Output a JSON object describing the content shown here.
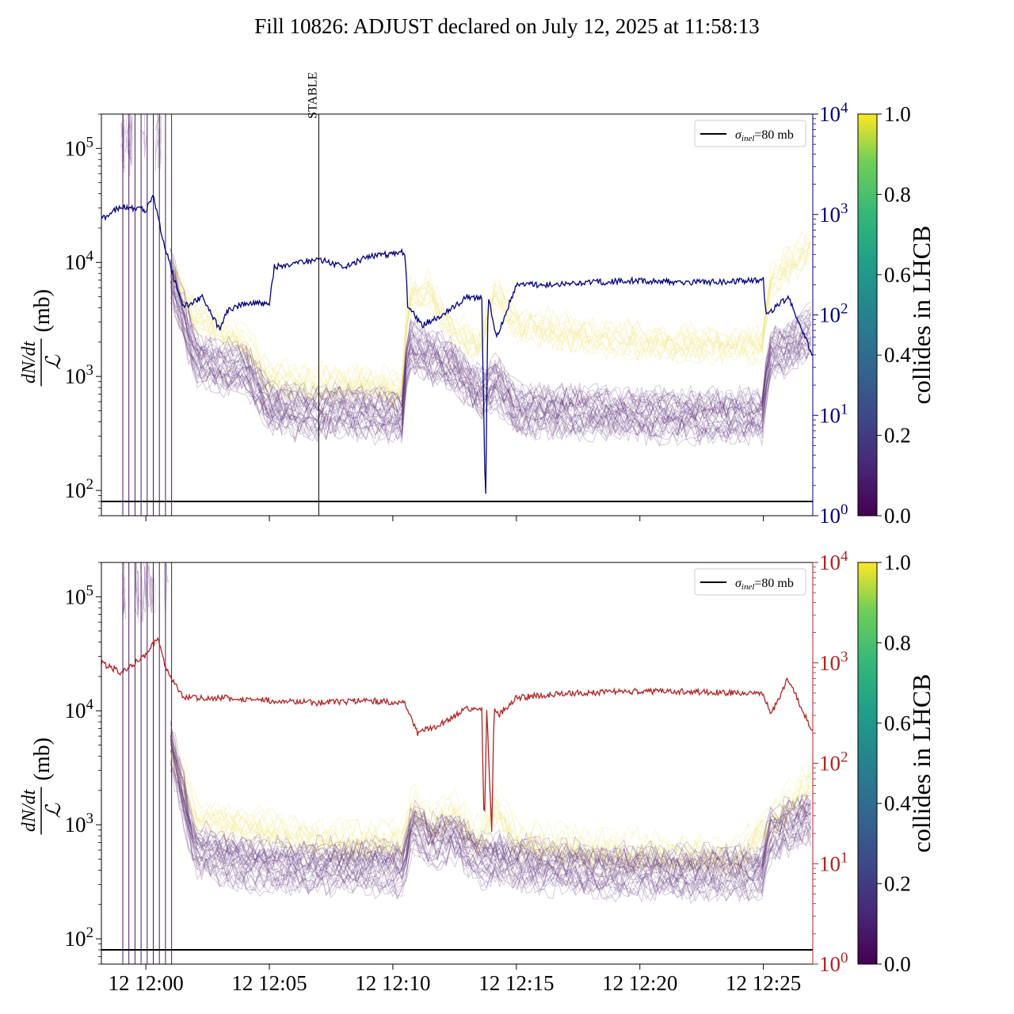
{
  "figure": {
    "title": "Fill 10826: ADJUST declared on July 12, 2025 at 11:58:13"
  },
  "chart_data": [
    {
      "type": "line",
      "panel": "top",
      "ylabel_numerator": "dN/dt",
      "ylabel_denominator": "ℒ",
      "ylabel_unit": "(mb)",
      "yscale": "log",
      "ylim": [
        60,
        200000
      ],
      "left_ticks": [
        "10^2",
        "10^3",
        "10^4",
        "10^5"
      ],
      "right_axis": {
        "scale": "log",
        "ylim": [
          1,
          10000
        ],
        "ticks": [
          "10^0",
          "10^1",
          "10^2",
          "10^3",
          "10^4"
        ],
        "color": "#00007f"
      },
      "xlim_minutes": [
        -1.8,
        27.0
      ],
      "annotation": {
        "label": "STABLE",
        "x_minute": 7.0
      },
      "legend": {
        "entry": "σinel=80 mb",
        "sigma": "σ",
        "sub": "inel",
        "rest": "=80 mb",
        "position": "upper right"
      },
      "reference_line_mb": 80,
      "colorbar": {
        "label": "collides in LHCB",
        "ticks": [
          "0.0",
          "0.2",
          "0.4",
          "0.6",
          "0.8",
          "1.0"
        ],
        "range": [
          0.0,
          1.0
        ]
      },
      "right_series_profile": [
        [
          -1.8,
          900
        ],
        [
          -1.0,
          1200
        ],
        [
          0.0,
          1100
        ],
        [
          0.3,
          1500
        ],
        [
          0.6,
          700
        ],
        [
          1.0,
          300
        ],
        [
          1.5,
          120
        ],
        [
          2.3,
          150
        ],
        [
          3.0,
          70
        ],
        [
          3.3,
          110
        ],
        [
          4.0,
          130
        ],
        [
          5.0,
          130
        ],
        [
          5.2,
          300
        ],
        [
          7.0,
          360
        ],
        [
          8.0,
          300
        ],
        [
          9.0,
          380
        ],
        [
          10.5,
          420
        ],
        [
          10.6,
          120
        ],
        [
          11.2,
          80
        ],
        [
          12.0,
          100
        ],
        [
          13.0,
          150
        ],
        [
          13.6,
          150
        ],
        [
          13.75,
          1
        ],
        [
          13.85,
          150
        ],
        [
          14.2,
          60
        ],
        [
          15.0,
          200
        ],
        [
          16.0,
          200
        ],
        [
          18.0,
          210
        ],
        [
          20.0,
          220
        ],
        [
          22.0,
          210
        ],
        [
          25.0,
          220
        ],
        [
          25.1,
          100
        ],
        [
          26.0,
          150
        ],
        [
          27.0,
          40
        ]
      ],
      "purple_band_profile": [
        [
          1.0,
          8000
        ],
        [
          2.0,
          1500
        ],
        [
          3.0,
          1200
        ],
        [
          4.0,
          1200
        ],
        [
          5.0,
          550
        ],
        [
          6.0,
          500
        ],
        [
          7.0,
          480
        ],
        [
          8.0,
          520
        ],
        [
          9.0,
          480
        ],
        [
          10.0,
          450
        ],
        [
          10.4,
          450
        ],
        [
          10.6,
          2000
        ],
        [
          11.5,
          1500
        ],
        [
          12.5,
          1200
        ],
        [
          13.5,
          700
        ],
        [
          14.2,
          900
        ],
        [
          15.0,
          500
        ],
        [
          17.0,
          500
        ],
        [
          19.0,
          480
        ],
        [
          22.0,
          450
        ],
        [
          24.0,
          450
        ],
        [
          25.0,
          450
        ],
        [
          25.2,
          1500
        ],
        [
          27.0,
          2500
        ]
      ],
      "yellow_band_profile": [
        [
          1.0,
          9000
        ],
        [
          2.0,
          3500
        ],
        [
          4.0,
          2000
        ],
        [
          5.0,
          1000
        ],
        [
          7.0,
          900
        ],
        [
          9.0,
          900
        ],
        [
          10.4,
          800
        ],
        [
          10.6,
          5000
        ],
        [
          11.5,
          6000
        ],
        [
          12.5,
          2500
        ],
        [
          13.5,
          2000
        ],
        [
          14.2,
          6000
        ],
        [
          15.0,
          3000
        ],
        [
          18.0,
          2300
        ],
        [
          22.0,
          2000
        ],
        [
          25.0,
          2000
        ],
        [
          25.2,
          7000
        ],
        [
          27.0,
          15000
        ]
      ]
    },
    {
      "type": "line",
      "panel": "bottom",
      "ylabel_numerator": "dN/dt",
      "ylabel_denominator": "ℒ",
      "ylabel_unit": "(mb)",
      "yscale": "log",
      "ylim": [
        60,
        200000
      ],
      "left_ticks": [
        "10^2",
        "10^3",
        "10^4",
        "10^5"
      ],
      "right_axis": {
        "scale": "log",
        "ylim": [
          1,
          10000
        ],
        "ticks": [
          "10^0",
          "10^1",
          "10^2",
          "10^3",
          "10^4"
        ],
        "color": "#b22222"
      },
      "xlim_minutes": [
        -1.8,
        27.0
      ],
      "x_ticks": [
        "12 12:00",
        "12 12:05",
        "12 12:10",
        "12 12:15",
        "12 12:20",
        "12 12:25"
      ],
      "x_tick_minutes": [
        0,
        5,
        10,
        15,
        20,
        25
      ],
      "legend": {
        "entry": "σinel=80 mb",
        "sigma": "σ",
        "sub": "inel",
        "rest": "=80 mb",
        "position": "upper right"
      },
      "reference_line_mb": 80,
      "colorbar": {
        "label": "collides in LHCB",
        "ticks": [
          "0.0",
          "0.2",
          "0.4",
          "0.6",
          "0.8",
          "1.0"
        ],
        "range": [
          0.0,
          1.0
        ]
      },
      "right_series_profile": [
        [
          -1.8,
          1000
        ],
        [
          -1.0,
          800
        ],
        [
          0.0,
          1200
        ],
        [
          0.5,
          1800
        ],
        [
          0.8,
          900
        ],
        [
          1.5,
          450
        ],
        [
          3.0,
          450
        ],
        [
          5.0,
          420
        ],
        [
          7.0,
          400
        ],
        [
          9.0,
          420
        ],
        [
          10.5,
          400
        ],
        [
          11.0,
          200
        ],
        [
          12.0,
          250
        ],
        [
          13.0,
          350
        ],
        [
          13.6,
          350
        ],
        [
          13.7,
          20
        ],
        [
          13.8,
          350
        ],
        [
          14.0,
          20
        ],
        [
          14.1,
          350
        ],
        [
          14.3,
          300
        ],
        [
          15.0,
          450
        ],
        [
          17.0,
          500
        ],
        [
          20.0,
          520
        ],
        [
          22.0,
          520
        ],
        [
          24.0,
          500
        ],
        [
          25.0,
          500
        ],
        [
          25.3,
          300
        ],
        [
          26.0,
          700
        ],
        [
          27.0,
          200
        ]
      ],
      "purple_band_profile": [
        [
          1.0,
          5000
        ],
        [
          2.0,
          600
        ],
        [
          4.0,
          450
        ],
        [
          6.0,
          420
        ],
        [
          8.0,
          430
        ],
        [
          10.0,
          420
        ],
        [
          10.4,
          400
        ],
        [
          10.8,
          1000
        ],
        [
          11.5,
          700
        ],
        [
          12.5,
          800
        ],
        [
          13.5,
          500
        ],
        [
          14.2,
          500
        ],
        [
          15.0,
          450
        ],
        [
          18.0,
          400
        ],
        [
          21.0,
          380
        ],
        [
          24.0,
          380
        ],
        [
          25.0,
          380
        ],
        [
          25.2,
          800
        ],
        [
          27.0,
          1200
        ]
      ],
      "yellow_band_profile": [
        [
          1.0,
          5000
        ],
        [
          2.0,
          1200
        ],
        [
          4.0,
          1000
        ],
        [
          6.0,
          800
        ],
        [
          8.0,
          700
        ],
        [
          10.4,
          700
        ],
        [
          10.8,
          1500
        ],
        [
          11.5,
          1000
        ],
        [
          12.5,
          1300
        ],
        [
          13.5,
          700
        ],
        [
          14.2,
          1500
        ],
        [
          15.0,
          700
        ],
        [
          18.0,
          600
        ],
        [
          21.0,
          550
        ],
        [
          24.0,
          500
        ],
        [
          25.2,
          1000
        ],
        [
          27.0,
          2500
        ]
      ]
    }
  ]
}
